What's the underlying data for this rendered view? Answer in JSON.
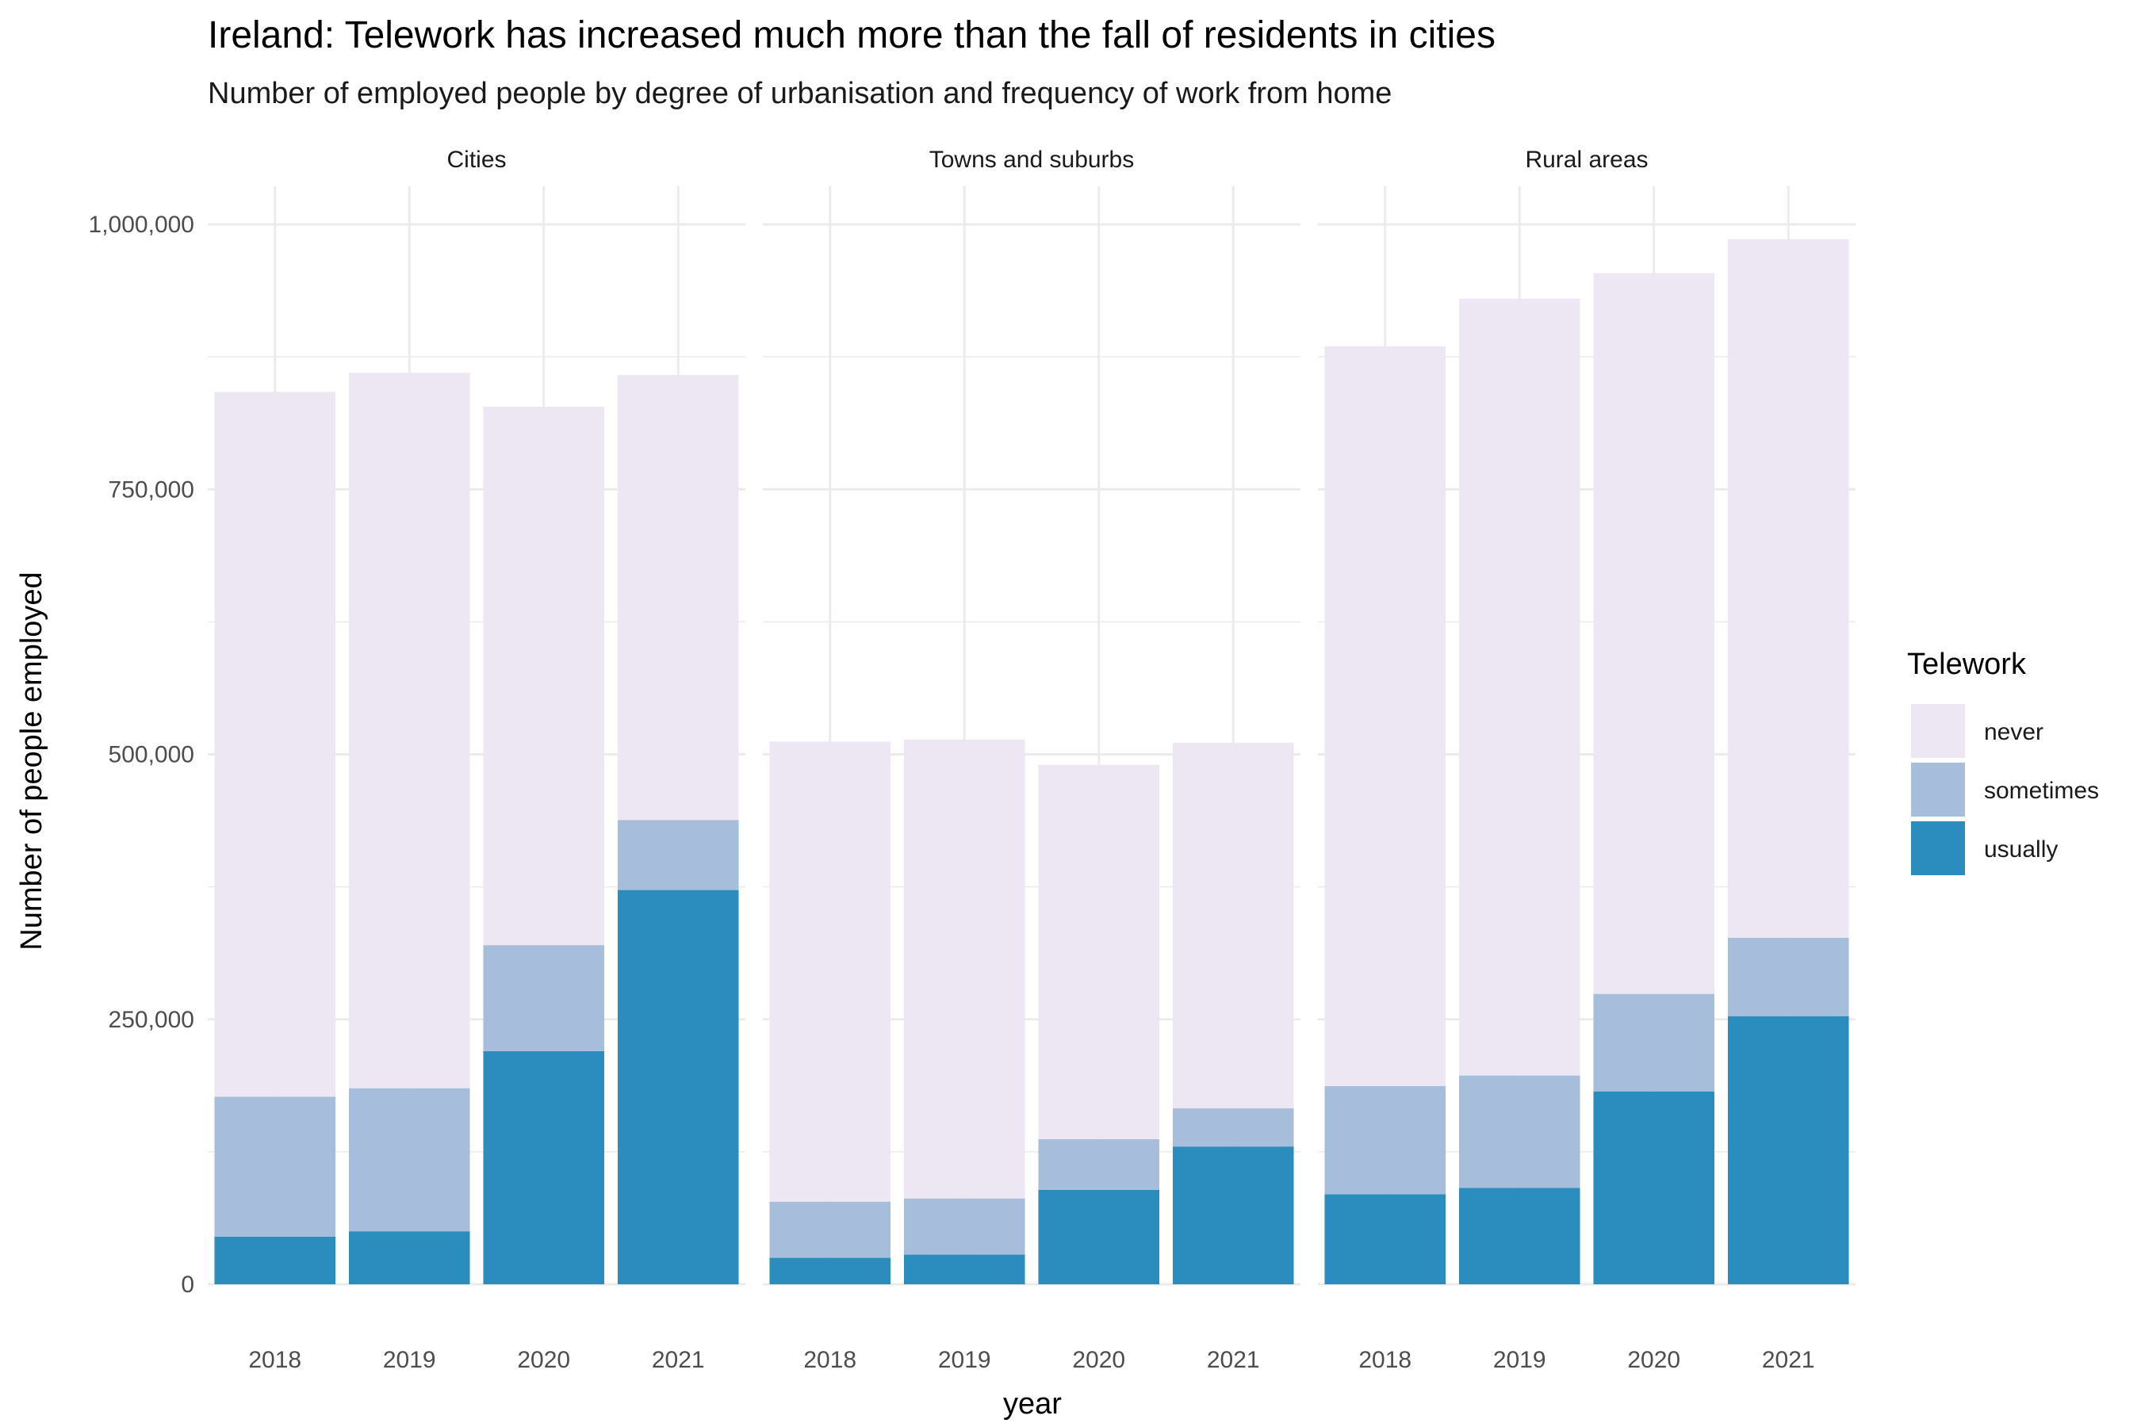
{
  "chart_data": {
    "type": "bar",
    "stacked": true,
    "title": "Ireland: Telework has increased much more than the fall of residents in cities",
    "subtitle": "Number of employed people by degree of urbanisation and frequency of work from home",
    "xlabel": "year",
    "ylabel": "Number of people employed",
    "ylim": [
      0,
      1000000
    ],
    "y_ticks": [
      0,
      250000,
      500000,
      750000,
      1000000
    ],
    "y_tick_labels": [
      "0",
      "250,000",
      "500,000",
      "750,000",
      "1,000,000"
    ],
    "grid": true,
    "legend": {
      "title": "Telework",
      "placement": "right",
      "entries": [
        {
          "key": "never",
          "label": "never",
          "color": "#ece7f2"
        },
        {
          "key": "sometimes",
          "label": "sometimes",
          "color": "#a6bddb"
        },
        {
          "key": "usually",
          "label": "usually",
          "color": "#2b8cbe"
        }
      ]
    },
    "categories": [
      "2018",
      "2019",
      "2020",
      "2021"
    ],
    "panels": [
      {
        "name": "Cities",
        "series": [
          {
            "name": "usually",
            "values": [
              45000,
              50000,
              220000,
              372000
            ]
          },
          {
            "name": "sometimes",
            "values": [
              132000,
              135000,
              100000,
              66000
            ]
          },
          {
            "name": "never",
            "values": [
              665000,
              675000,
              508000,
              420000
            ]
          }
        ]
      },
      {
        "name": "Towns and suburbs",
        "series": [
          {
            "name": "usually",
            "values": [
              25000,
              28000,
              89000,
              130000
            ]
          },
          {
            "name": "sometimes",
            "values": [
              53000,
              53000,
              48000,
              36000
            ]
          },
          {
            "name": "never",
            "values": [
              434000,
              433000,
              353000,
              345000
            ]
          }
        ]
      },
      {
        "name": "Rural areas",
        "series": [
          {
            "name": "usually",
            "values": [
              85000,
              91000,
              182000,
              253000
            ]
          },
          {
            "name": "sometimes",
            "values": [
              102000,
              106000,
              92000,
              74000
            ]
          },
          {
            "name": "never",
            "values": [
              698000,
              733000,
              680000,
              659000
            ]
          }
        ]
      }
    ]
  }
}
